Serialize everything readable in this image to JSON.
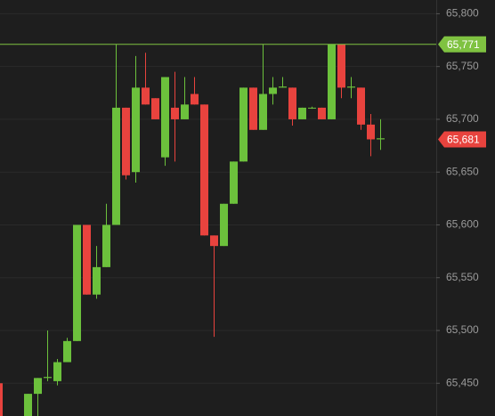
{
  "chart_data": {
    "type": "candlestick",
    "open": [
      65450,
      null,
      null,
      65419,
      65440,
      65455,
      65452,
      65470,
      65490,
      65600,
      65534,
      65560,
      65600,
      65711,
      65650,
      65730,
      65720,
      65664,
      65711,
      65700,
      65724,
      65714,
      65590,
      65580,
      65620,
      65660,
      65730,
      65690,
      65724,
      65730,
      65730,
      65700,
      65711,
      65711,
      65700,
      65771,
      65730,
      65730,
      65695,
      65681
    ],
    "high": [
      65450,
      null,
      null,
      65440,
      65455,
      65500,
      65473,
      65493,
      65600,
      65600,
      65580,
      65620,
      65771,
      65711,
      65760,
      65763,
      65720,
      65740,
      65745,
      65740,
      65740,
      65714,
      65590,
      65620,
      65660,
      65730,
      65730,
      65771,
      65740,
      65740,
      65730,
      65711,
      65712,
      65711,
      65771,
      65771,
      65740,
      65730,
      65705,
      65700
    ],
    "low": [
      65419,
      null,
      null,
      65419,
      65419,
      65452,
      65448,
      65470,
      65490,
      65534,
      65530,
      65560,
      65600,
      65643,
      65640,
      65714,
      65700,
      65656,
      65660,
      65700,
      65714,
      65590,
      65494,
      65580,
      65620,
      65660,
      65690,
      65690,
      65714,
      65730,
      65694,
      65700,
      65710,
      65700,
      65700,
      65720,
      65720,
      65690,
      65665,
      65671
    ],
    "close": [
      65419,
      null,
      null,
      65440,
      65455,
      65456,
      65470,
      65490,
      65600,
      65534,
      65560,
      65600,
      65711,
      65647,
      65730,
      65714,
      65700,
      65740,
      65700,
      65714,
      65714,
      65590,
      65580,
      65620,
      65660,
      65730,
      65690,
      65724,
      65730,
      65731,
      65700,
      65711,
      65711,
      65700,
      65771,
      65730,
      65731,
      65695,
      65681,
      65682
    ],
    "up_color": "#6cc13c",
    "down_color": "#e8433e",
    "ylim": [
      65419,
      65813
    ],
    "yticks": [
      {
        "value": 65450,
        "label": "65,450"
      },
      {
        "value": 65500,
        "label": "65,500"
      },
      {
        "value": 65550,
        "label": "65,550"
      },
      {
        "value": 65600,
        "label": "65,600"
      },
      {
        "value": 65650,
        "label": "65,650"
      },
      {
        "value": 65700,
        "label": "65,700"
      },
      {
        "value": 65750,
        "label": "65,750"
      },
      {
        "value": 65800,
        "label": "65,800"
      }
    ],
    "grid": true,
    "markers": [
      {
        "value": 65771,
        "label": "65,771",
        "color": "#7fc241",
        "line": true
      },
      {
        "value": 65681,
        "label": "65,681",
        "color": "#e8433e",
        "line": false
      }
    ]
  }
}
